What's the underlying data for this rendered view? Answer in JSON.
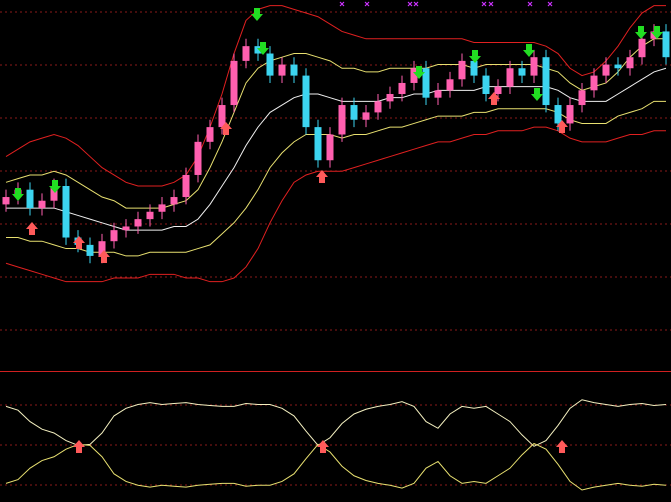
{
  "chart_data": [
    {
      "type": "candlestick",
      "open": [
        45,
        47,
        49,
        44,
        46,
        50,
        36,
        34,
        31,
        35,
        38,
        39,
        41,
        43,
        45,
        47,
        53,
        62,
        66,
        72,
        84,
        88,
        86,
        80,
        83,
        80,
        66,
        57,
        64,
        72,
        68,
        70,
        73,
        75,
        78,
        82,
        74,
        76,
        79,
        84,
        80,
        75,
        77,
        82,
        80,
        85,
        72,
        67,
        72,
        76,
        80,
        83,
        82,
        85,
        90,
        92
      ],
      "high": [
        49,
        51,
        51,
        48,
        52,
        52,
        38,
        36,
        37,
        40,
        41,
        43,
        45,
        47,
        49,
        55,
        64,
        68,
        74,
        86,
        90,
        90,
        88,
        85,
        85,
        82,
        68,
        66,
        74,
        74,
        72,
        75,
        77,
        80,
        84,
        84,
        78,
        81,
        86,
        86,
        82,
        79,
        84,
        84,
        87,
        87,
        74,
        74,
        78,
        82,
        85,
        85,
        87,
        92,
        94,
        94
      ],
      "low": [
        43,
        45,
        42,
        42,
        44,
        34,
        32,
        29,
        29,
        33,
        36,
        37,
        39,
        41,
        43,
        45,
        51,
        60,
        64,
        70,
        82,
        84,
        78,
        78,
        78,
        64,
        55,
        55,
        62,
        66,
        66,
        68,
        71,
        73,
        76,
        72,
        72,
        74,
        77,
        78,
        73,
        73,
        75,
        78,
        78,
        70,
        65,
        65,
        70,
        74,
        78,
        80,
        80,
        83,
        88,
        83
      ],
      "close": [
        47,
        49,
        44,
        46,
        50,
        36,
        34,
        31,
        35,
        38,
        39,
        41,
        43,
        45,
        47,
        53,
        62,
        66,
        72,
        84,
        88,
        86,
        80,
        83,
        80,
        66,
        57,
        64,
        72,
        68,
        70,
        73,
        75,
        78,
        82,
        74,
        76,
        79,
        84,
        80,
        75,
        77,
        82,
        80,
        85,
        72,
        67,
        72,
        76,
        80,
        83,
        82,
        85,
        90,
        92,
        85
      ],
      "up_color": "#ff5faf",
      "down_color": "#3cd4f0",
      "ylim": [
        0,
        100
      ],
      "series": [
        {
          "color": "#e02020",
          "values": [
            58,
            60,
            62,
            63,
            64,
            63,
            61,
            58,
            55,
            53,
            51,
            50,
            50,
            50,
            51,
            53,
            58,
            66,
            75,
            86,
            95,
            98,
            99,
            99,
            98,
            97,
            96,
            94,
            92,
            91,
            90,
            90,
            90,
            90,
            90,
            90,
            90,
            90,
            90,
            89,
            89,
            89,
            89,
            89,
            89,
            88,
            86,
            82,
            80,
            81,
            84,
            88,
            93,
            97,
            99,
            99
          ]
        },
        {
          "color": "#e8e070",
          "values": [
            51,
            52,
            53,
            53,
            54,
            53,
            51,
            49,
            47,
            46,
            44,
            44,
            44,
            44,
            45,
            46,
            49,
            55,
            62,
            70,
            78,
            82,
            84,
            85,
            86,
            86,
            85,
            84,
            82,
            82,
            81,
            81,
            82,
            82,
            82,
            82,
            83,
            83,
            83,
            82,
            83,
            83,
            83,
            83,
            83,
            82,
            81,
            78,
            76,
            77,
            78,
            81,
            85,
            88,
            90,
            90
          ]
        },
        {
          "color": "#f0f0f0",
          "values": [
            44,
            44,
            44,
            44,
            44,
            43,
            42,
            41,
            40,
            39,
            38,
            38,
            38,
            38,
            39,
            39,
            41,
            45,
            50,
            55,
            61,
            66,
            70,
            72,
            74,
            75,
            75,
            74,
            73,
            73,
            73,
            73,
            74,
            74,
            75,
            75,
            76,
            76,
            76,
            76,
            77,
            77,
            77,
            77,
            77,
            77,
            76,
            74,
            73,
            73,
            73,
            75,
            77,
            79,
            81,
            82
          ]
        },
        {
          "color": "#e8e070",
          "values": [
            36,
            36,
            35,
            35,
            34,
            33,
            33,
            32,
            32,
            32,
            31,
            31,
            32,
            32,
            32,
            32,
            33,
            34,
            37,
            40,
            44,
            49,
            55,
            59,
            62,
            64,
            64,
            64,
            63,
            64,
            64,
            65,
            66,
            66,
            67,
            68,
            69,
            69,
            69,
            70,
            70,
            71,
            71,
            71,
            71,
            71,
            70,
            68,
            67,
            67,
            67,
            69,
            70,
            71,
            73,
            73
          ]
        },
        {
          "color": "#e02020",
          "values": [
            29,
            28,
            27,
            26,
            25,
            24,
            24,
            24,
            24,
            25,
            25,
            25,
            26,
            26,
            26,
            25,
            25,
            24,
            24,
            25,
            28,
            33,
            40,
            46,
            51,
            53,
            54,
            54,
            54,
            55,
            56,
            57,
            58,
            59,
            60,
            61,
            62,
            62,
            63,
            64,
            64,
            65,
            65,
            65,
            66,
            66,
            65,
            63,
            62,
            62,
            62,
            63,
            64,
            64,
            65,
            65
          ]
        }
      ]
    },
    {
      "type": "line",
      "ylim": [
        0,
        100
      ],
      "series": [
        {
          "color": "#f4f0c0",
          "values": [
            88,
            84,
            72,
            64,
            60,
            52,
            47,
            48,
            60,
            78,
            86,
            90,
            92,
            90,
            91,
            92,
            90,
            89,
            88,
            88,
            91,
            90,
            90,
            86,
            78,
            62,
            47,
            55,
            70,
            80,
            85,
            88,
            90,
            93,
            88,
            72,
            65,
            80,
            88,
            86,
            88,
            80,
            72,
            58,
            46,
            52,
            68,
            86,
            95,
            92,
            90,
            88,
            90,
            91,
            89,
            90
          ]
        },
        {
          "color": "#e8e070",
          "values": [
            7,
            11,
            23,
            31,
            35,
            43,
            48,
            47,
            35,
            17,
            9,
            5,
            3,
            5,
            4,
            3,
            5,
            6,
            7,
            7,
            4,
            5,
            5,
            9,
            17,
            33,
            48,
            40,
            25,
            15,
            10,
            7,
            5,
            2,
            7,
            23,
            30,
            15,
            7,
            9,
            7,
            15,
            23,
            37,
            49,
            43,
            27,
            9,
            0,
            3,
            5,
            7,
            5,
            4,
            6,
            5
          ]
        }
      ]
    }
  ]
}
